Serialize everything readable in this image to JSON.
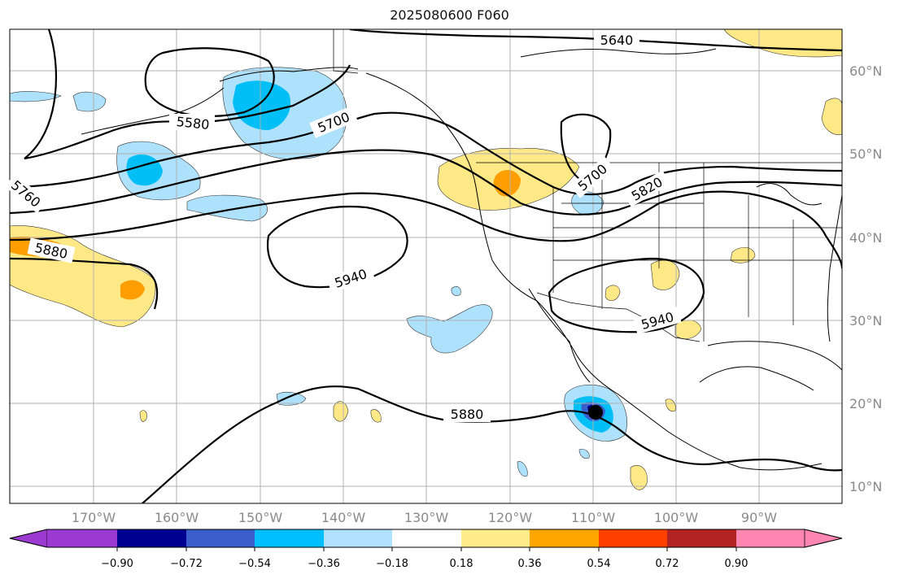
{
  "title": "2025080600 F060",
  "map": {
    "lon_labels": [
      "170°W",
      "160°W",
      "150°W",
      "140°W",
      "130°W",
      "120°W",
      "110°W",
      "100°W",
      "90°W"
    ],
    "lat_labels": [
      "60°N",
      "50°N",
      "40°N",
      "30°N",
      "20°N",
      "10°N"
    ],
    "contour_labels": [
      "5640",
      "5580",
      "5700",
      "5760",
      "5880",
      "5940",
      "5700",
      "5820",
      "5940",
      "5880"
    ],
    "shading_colors": {
      "light_yellow": "#ffe987",
      "orange": "#ff9e00",
      "light_blue": "#aee1fb",
      "blue": "#00bff7",
      "mid_blue": "#3a5fcd",
      "dark_blue": "#000088"
    }
  },
  "colorbar": {
    "colors": [
      "#9a3ad0",
      "#000090",
      "#3a5fcd",
      "#00bfff",
      "#b0e2ff",
      "#ffffff",
      "#ffec8b",
      "#ffa500",
      "#ff4000",
      "#b22222",
      "#ff86b0"
    ],
    "ticks": [
      "−0.90",
      "−0.72",
      "−0.54",
      "−0.36",
      "−0.18",
      "0.18",
      "0.36",
      "0.54",
      "0.72",
      "0.90"
    ]
  }
}
